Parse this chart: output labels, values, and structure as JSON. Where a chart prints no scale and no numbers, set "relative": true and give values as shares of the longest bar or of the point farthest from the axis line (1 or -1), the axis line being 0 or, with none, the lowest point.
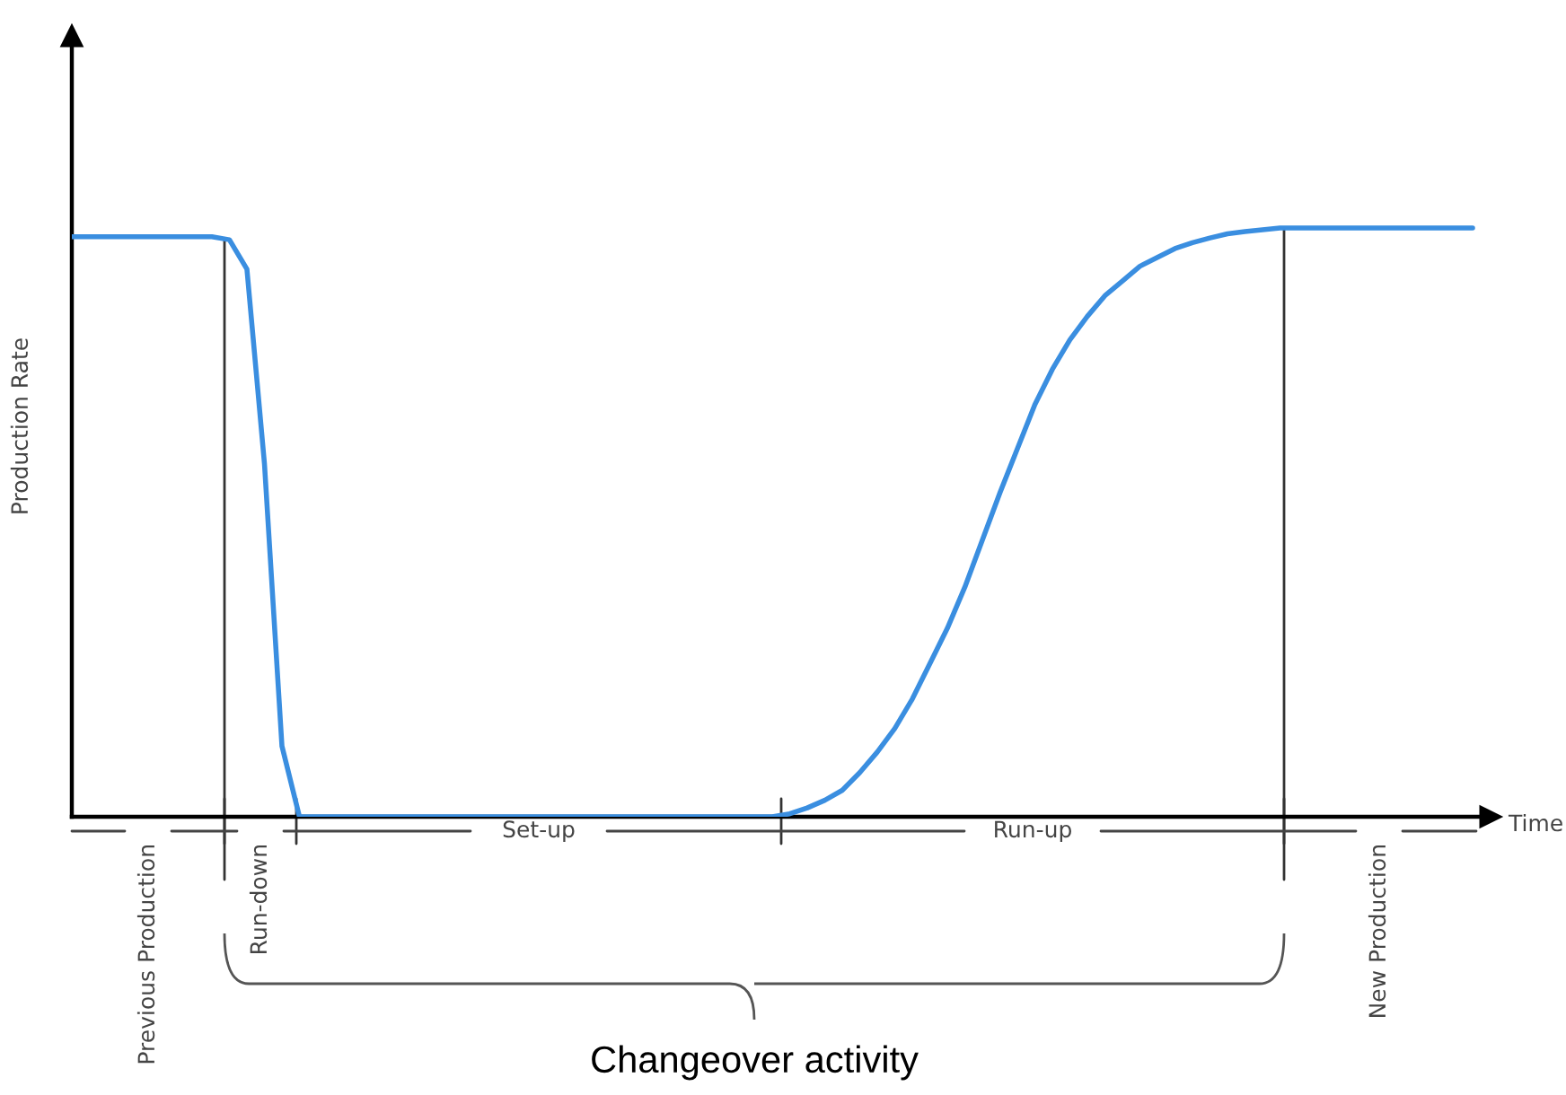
{
  "chart_data": {
    "type": "line",
    "relative": true,
    "xlabel": "Time",
    "ylabel": "Production Rate",
    "categories": [
      null,
      null,
      null,
      null,
      null,
      null,
      null,
      null,
      null,
      null,
      null,
      null,
      null,
      null,
      null,
      null,
      null,
      null,
      null,
      null,
      null,
      null,
      null,
      null,
      null,
      null,
      null,
      null,
      null,
      null,
      null,
      null,
      null,
      null,
      null,
      null,
      null,
      null,
      null,
      null,
      null,
      null,
      null,
      null,
      null,
      null,
      null,
      null,
      null,
      null,
      null,
      null,
      null,
      null,
      null,
      null,
      null,
      null,
      null,
      null,
      null,
      null,
      null,
      null,
      null,
      null,
      null,
      null,
      null,
      null,
      null,
      null,
      null,
      null,
      null,
      null,
      null,
      null,
      null,
      null,
      null
    ],
    "series": [
      {
        "color": "#3a8ee0",
        "values": [
          0.985,
          0.985,
          0.985,
          0.985,
          0.985,
          0.985,
          0.985,
          0.985,
          0.985,
          0.98,
          0.93,
          0.6,
          0.12,
          0,
          0,
          0,
          0,
          0,
          0,
          0,
          0,
          0,
          0,
          0,
          0,
          0,
          0,
          0,
          0,
          0,
          0,
          0,
          0,
          0,
          0,
          0,
          0,
          0,
          0,
          0,
          0,
          0.005,
          0.015,
          0.028,
          0.045,
          0.075,
          0.11,
          0.15,
          0.2,
          0.26,
          0.32,
          0.39,
          0.47,
          0.55,
          0.625,
          0.7,
          0.76,
          0.81,
          0.85,
          0.885,
          0.91,
          0.935,
          0.95,
          0.965,
          0.975,
          0.983,
          0.99,
          0.994,
          0.997,
          1,
          1,
          1,
          1,
          1,
          1,
          1,
          1,
          1,
          1,
          1,
          1
        ]
      }
    ],
    "annotations": [
      "Previous Production",
      "Run-down",
      "Set-up",
      "Run-up",
      "New Production",
      "Changeover activity"
    ],
    "marker": "none",
    "line_style": "solid"
  }
}
